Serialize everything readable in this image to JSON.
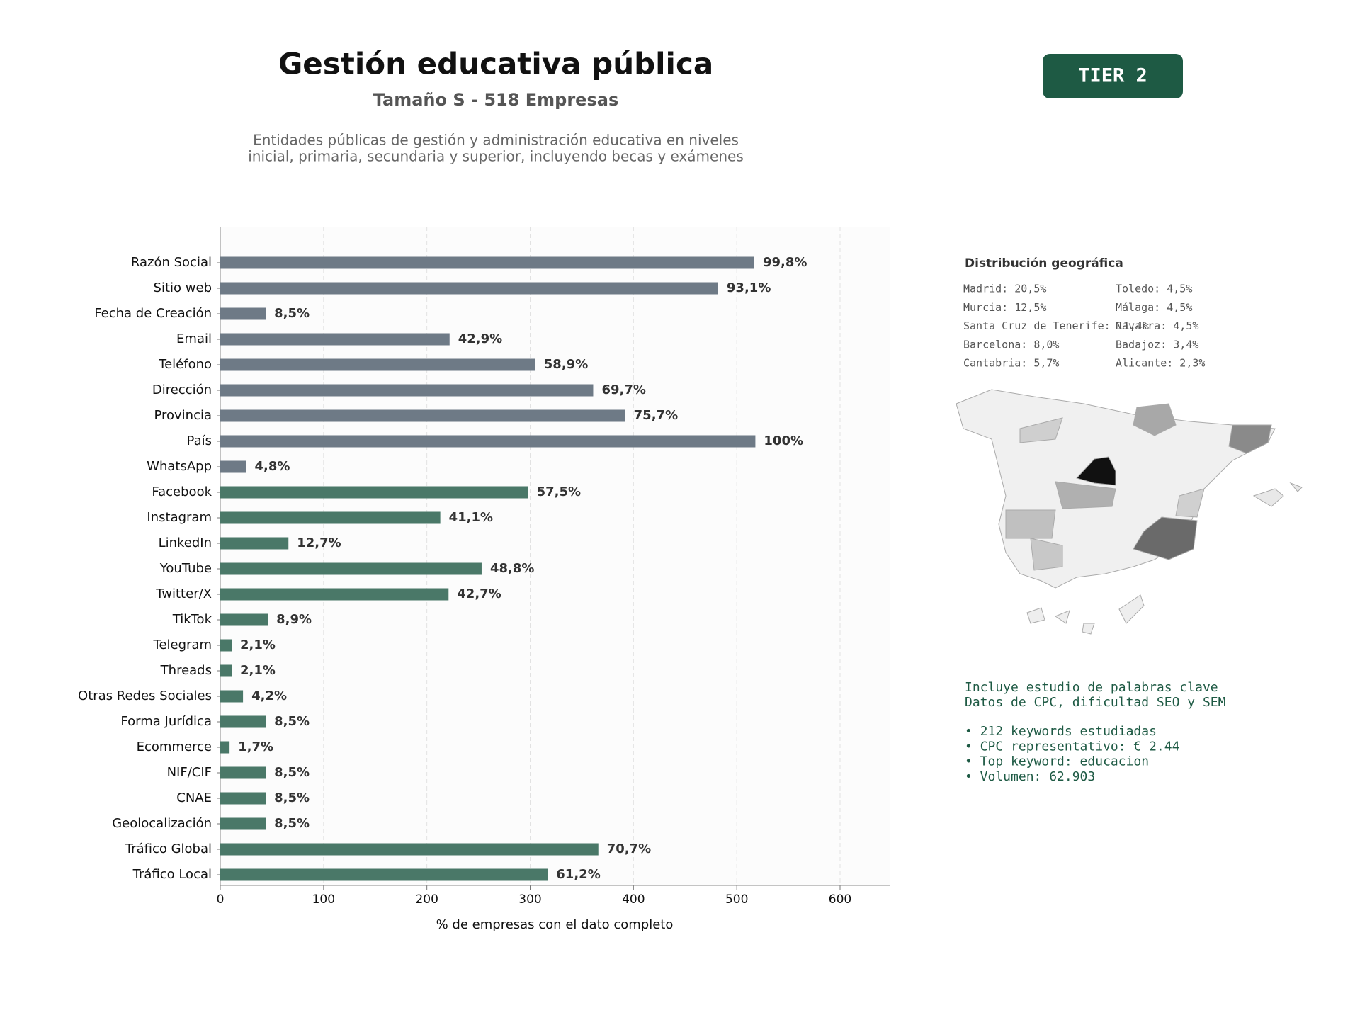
{
  "header": {
    "title": "Gestión educativa pública",
    "subtitle": "Tamaño S - 518 Empresas",
    "description": [
      "Entidades públicas de gestión y administración educativa en niveles",
      "inicial, primaria, secundaria y superior, incluyendo becas y exámenes"
    ],
    "tier": "TIER 2"
  },
  "chart_data": {
    "type": "bar",
    "orientation": "horizontal",
    "categories": [
      "Razón Social",
      "Sitio web",
      "Fecha de Creación",
      "Email",
      "Teléfono",
      "Dirección",
      "Provincia",
      "País",
      "WhatsApp",
      "Facebook",
      "Instagram",
      "LinkedIn",
      "YouTube",
      "Twitter/X",
      "TikTok",
      "Telegram",
      "Threads",
      "Otras Redes Sociales",
      "Forma Jurídica",
      "Ecommerce",
      "NIF/CIF",
      "CNAE",
      "Geolocalización",
      "Tráfico Global",
      "Tráfico Local"
    ],
    "values": [
      517,
      482,
      44,
      222,
      305,
      361,
      392,
      518,
      25,
      298,
      213,
      66,
      253,
      221,
      46,
      11,
      11,
      22,
      44,
      9,
      44,
      44,
      44,
      366,
      317
    ],
    "value_labels": [
      "99,8%",
      "93,1%",
      "8,5%",
      "42,9%",
      "58,9%",
      "69,7%",
      "75,7%",
      "100%",
      "4,8%",
      "57,5%",
      "41,1%",
      "12,7%",
      "48,8%",
      "42,7%",
      "8,9%",
      "2,1%",
      "2,1%",
      "4,2%",
      "8,5%",
      "1,7%",
      "8,5%",
      "8,5%",
      "8,5%",
      "70,7%",
      "61,2%"
    ],
    "bar_colors": [
      "#6e7a86",
      "#6e7a86",
      "#6e7a86",
      "#6e7a86",
      "#6e7a86",
      "#6e7a86",
      "#6e7a86",
      "#6e7a86",
      "#6e7a86",
      "#4a7868",
      "#4a7868",
      "#4a7868",
      "#4a7868",
      "#4a7868",
      "#4a7868",
      "#4a7868",
      "#4a7868",
      "#4a7868",
      "#4a7868",
      "#4a7868",
      "#4a7868",
      "#4a7868",
      "#4a7868",
      "#4a7868",
      "#4a7868"
    ],
    "xlabel": "% de empresas con el dato completo",
    "xlim": [
      0,
      648
    ],
    "xticks": [
      0,
      100,
      200,
      300,
      400,
      500,
      600
    ],
    "grid": true
  },
  "geo": {
    "title": "Distribución geográfica",
    "entries": [
      "Madrid: 20,5%",
      "Murcia: 12,5%",
      "Santa Cruz de Tenerife: 11,4%",
      "Barcelona: 8,0%",
      "Cantabria: 5,7%",
      "Toledo: 4,5%",
      "Málaga: 4,5%",
      "Navarra: 4,5%",
      "Badajoz: 3,4%",
      "Alicante: 2,3%"
    ]
  },
  "keywords": {
    "lines": [
      "Incluye estudio de palabras clave",
      "Datos de CPC, dificultad SEO y SEM"
    ],
    "bullets": [
      "• 212 keywords estudiadas",
      "• CPC representativo: € 2.44",
      "• Top keyword: educacion",
      "• Volumen: 62.903"
    ]
  }
}
